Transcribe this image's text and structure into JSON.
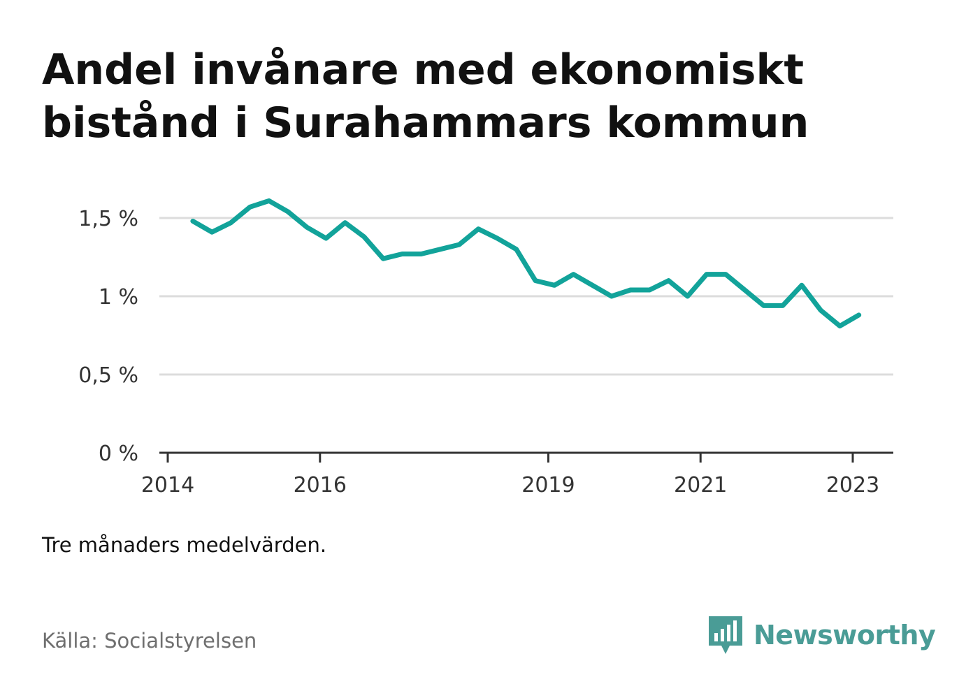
{
  "title_lines": [
    "Andel invånare med ekonomiskt",
    "bistånd i Surahammars kommun"
  ],
  "note": "Tre månaders medelvärden.",
  "source": "Källa: Socialstyrelsen",
  "brand": {
    "name": "Newsworthy",
    "icon": "bar-chart-speech-bubble-icon",
    "color": "#4a9c96"
  },
  "chart_data": {
    "type": "line",
    "title": "Andel invånare med ekonomiskt bistånd i Surahammars kommun",
    "ylabel": "",
    "xlabel": "",
    "ylim": [
      0,
      1.6
    ],
    "y_ticks": [
      0,
      0.5,
      1,
      1.5
    ],
    "y_tick_labels": [
      "0 %",
      "0,5 %",
      "1 %",
      "1,5 %"
    ],
    "x_ticks": [
      2014,
      2016,
      2019,
      2021,
      2023
    ],
    "x_tick_labels": [
      "2014",
      "2016",
      "2019",
      "2021",
      "2023"
    ],
    "grid": true,
    "line_color": "#12a39a",
    "series": [
      {
        "x": [
          2014.33,
          2014.58,
          2014.83,
          2015.08,
          2015.33,
          2015.58,
          2015.83,
          2016.08,
          2016.33,
          2016.58,
          2016.83,
          2017.08,
          2017.33,
          2017.58,
          2017.83,
          2018.08,
          2018.33,
          2018.58,
          2018.83,
          2019.08,
          2019.33,
          2019.58,
          2019.83,
          2020.08,
          2020.33,
          2020.58,
          2020.83,
          2021.08,
          2021.33,
          2021.58,
          2021.83,
          2022.08,
          2022.33,
          2022.58,
          2022.83,
          2023.08
        ],
        "values": [
          1.48,
          1.41,
          1.47,
          1.57,
          1.61,
          1.54,
          1.44,
          1.37,
          1.47,
          1.38,
          1.24,
          1.27,
          1.27,
          1.3,
          1.33,
          1.43,
          1.37,
          1.3,
          1.1,
          1.07,
          1.14,
          1.07,
          1.0,
          1.04,
          1.04,
          1.1,
          1.0,
          1.14,
          1.14,
          1.04,
          0.94,
          0.94,
          1.07,
          0.91,
          0.81,
          0.88
        ]
      }
    ]
  }
}
